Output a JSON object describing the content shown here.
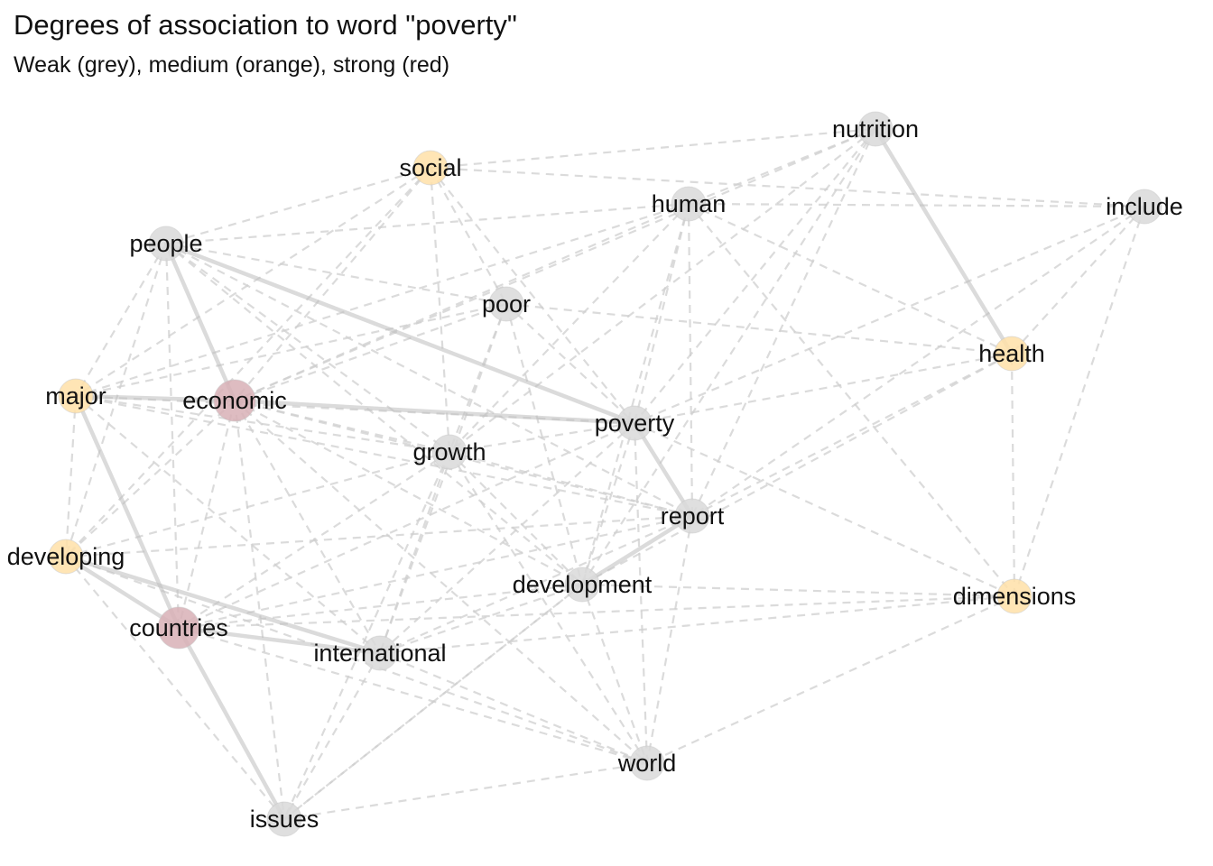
{
  "title": "Degrees of association to word \"poverty\"",
  "subtitle": "Weak (grey), medium (orange), strong (red)",
  "colors": {
    "weak": "#d9d9d9",
    "medium": "#ffe0a8",
    "strong": "#d8b0b6",
    "edge": "#cfcfcf"
  },
  "nodes": [
    {
      "id": "nutrition",
      "label": "nutrition",
      "strength": "weak"
    },
    {
      "id": "social",
      "label": "social",
      "strength": "medium"
    },
    {
      "id": "human",
      "label": "human",
      "strength": "weak"
    },
    {
      "id": "include",
      "label": "include",
      "strength": "weak"
    },
    {
      "id": "people",
      "label": "people",
      "strength": "weak"
    },
    {
      "id": "poor",
      "label": "poor",
      "strength": "weak"
    },
    {
      "id": "health",
      "label": "health",
      "strength": "medium"
    },
    {
      "id": "major",
      "label": "major",
      "strength": "medium"
    },
    {
      "id": "economic",
      "label": "economic",
      "strength": "strong"
    },
    {
      "id": "poverty",
      "label": "poverty",
      "strength": "weak"
    },
    {
      "id": "growth",
      "label": "growth",
      "strength": "weak"
    },
    {
      "id": "report",
      "label": "report",
      "strength": "weak"
    },
    {
      "id": "developing",
      "label": "developing",
      "strength": "medium"
    },
    {
      "id": "development",
      "label": "development",
      "strength": "weak"
    },
    {
      "id": "dimensions",
      "label": "dimensions",
      "strength": "medium"
    },
    {
      "id": "countries",
      "label": "countries",
      "strength": "strong"
    },
    {
      "id": "international",
      "label": "international",
      "strength": "weak"
    },
    {
      "id": "world",
      "label": "world",
      "strength": "weak"
    },
    {
      "id": "issues",
      "label": "issues",
      "strength": "weak"
    }
  ],
  "strong_edges": [
    [
      "nutrition",
      "health"
    ],
    [
      "people",
      "economic"
    ],
    [
      "people",
      "poverty"
    ],
    [
      "major",
      "economic"
    ],
    [
      "economic",
      "poverty"
    ],
    [
      "major",
      "countries"
    ],
    [
      "developing",
      "countries"
    ],
    [
      "developing",
      "international"
    ],
    [
      "countries",
      "international"
    ],
    [
      "countries",
      "issues"
    ],
    [
      "poverty",
      "report"
    ],
    [
      "report",
      "development"
    ]
  ],
  "weak_edges": [
    [
      "social",
      "nutrition"
    ],
    [
      "social",
      "include"
    ],
    [
      "social",
      "people"
    ],
    [
      "social",
      "poor"
    ],
    [
      "social",
      "major"
    ],
    [
      "social",
      "economic"
    ],
    [
      "social",
      "growth"
    ],
    [
      "social",
      "poverty"
    ],
    [
      "social",
      "developing"
    ],
    [
      "human",
      "people"
    ],
    [
      "human",
      "include"
    ],
    [
      "human",
      "poverty"
    ],
    [
      "human",
      "report"
    ],
    [
      "human",
      "health"
    ],
    [
      "human",
      "dimensions"
    ],
    [
      "human",
      "economic"
    ],
    [
      "human",
      "growth"
    ],
    [
      "human",
      "development"
    ],
    [
      "human",
      "major"
    ],
    [
      "nutrition",
      "poverty"
    ],
    [
      "nutrition",
      "report"
    ],
    [
      "nutrition",
      "development"
    ],
    [
      "nutrition",
      "human"
    ],
    [
      "nutrition",
      "economic"
    ],
    [
      "nutrition",
      "growth"
    ],
    [
      "include",
      "poverty"
    ],
    [
      "include",
      "report"
    ],
    [
      "include",
      "dimensions"
    ],
    [
      "include",
      "health"
    ],
    [
      "people",
      "poor"
    ],
    [
      "people",
      "major"
    ],
    [
      "people",
      "developing"
    ],
    [
      "people",
      "growth"
    ],
    [
      "people",
      "countries"
    ],
    [
      "people",
      "development"
    ],
    [
      "people",
      "report"
    ],
    [
      "poor",
      "poverty"
    ],
    [
      "poor",
      "growth"
    ],
    [
      "poor",
      "health"
    ],
    [
      "poor",
      "economic"
    ],
    [
      "poor",
      "development"
    ],
    [
      "poor",
      "international"
    ],
    [
      "poor",
      "major"
    ],
    [
      "major",
      "developing"
    ],
    [
      "major",
      "growth"
    ],
    [
      "major",
      "report"
    ],
    [
      "major",
      "poverty"
    ],
    [
      "major",
      "international"
    ],
    [
      "economic",
      "growth"
    ],
    [
      "economic",
      "development"
    ],
    [
      "economic",
      "countries"
    ],
    [
      "economic",
      "international"
    ],
    [
      "economic",
      "developing"
    ],
    [
      "economic",
      "issues"
    ],
    [
      "economic",
      "world"
    ],
    [
      "economic",
      "report"
    ],
    [
      "poverty",
      "growth"
    ],
    [
      "poverty",
      "health"
    ],
    [
      "poverty",
      "development"
    ],
    [
      "poverty",
      "world"
    ],
    [
      "poverty",
      "international"
    ],
    [
      "poverty",
      "dimensions"
    ],
    [
      "poverty",
      "countries"
    ],
    [
      "growth",
      "report"
    ],
    [
      "growth",
      "development"
    ],
    [
      "growth",
      "developing"
    ],
    [
      "growth",
      "international"
    ],
    [
      "growth",
      "countries"
    ],
    [
      "growth",
      "issues"
    ],
    [
      "growth",
      "world"
    ],
    [
      "report",
      "health"
    ],
    [
      "report",
      "world"
    ],
    [
      "report",
      "international"
    ],
    [
      "report",
      "countries"
    ],
    [
      "report",
      "developing"
    ],
    [
      "development",
      "dimensions"
    ],
    [
      "development",
      "world"
    ],
    [
      "development",
      "international"
    ],
    [
      "development",
      "issues"
    ],
    [
      "development",
      "countries"
    ],
    [
      "development",
      "health"
    ],
    [
      "developing",
      "issues"
    ],
    [
      "developing",
      "world"
    ],
    [
      "countries",
      "world"
    ],
    [
      "countries",
      "dimensions"
    ],
    [
      "international",
      "world"
    ],
    [
      "international",
      "issues"
    ],
    [
      "international",
      "dimensions"
    ],
    [
      "issues",
      "world"
    ],
    [
      "issues",
      "development"
    ],
    [
      "dimensions",
      "world"
    ],
    [
      "dimensions",
      "health"
    ]
  ]
}
